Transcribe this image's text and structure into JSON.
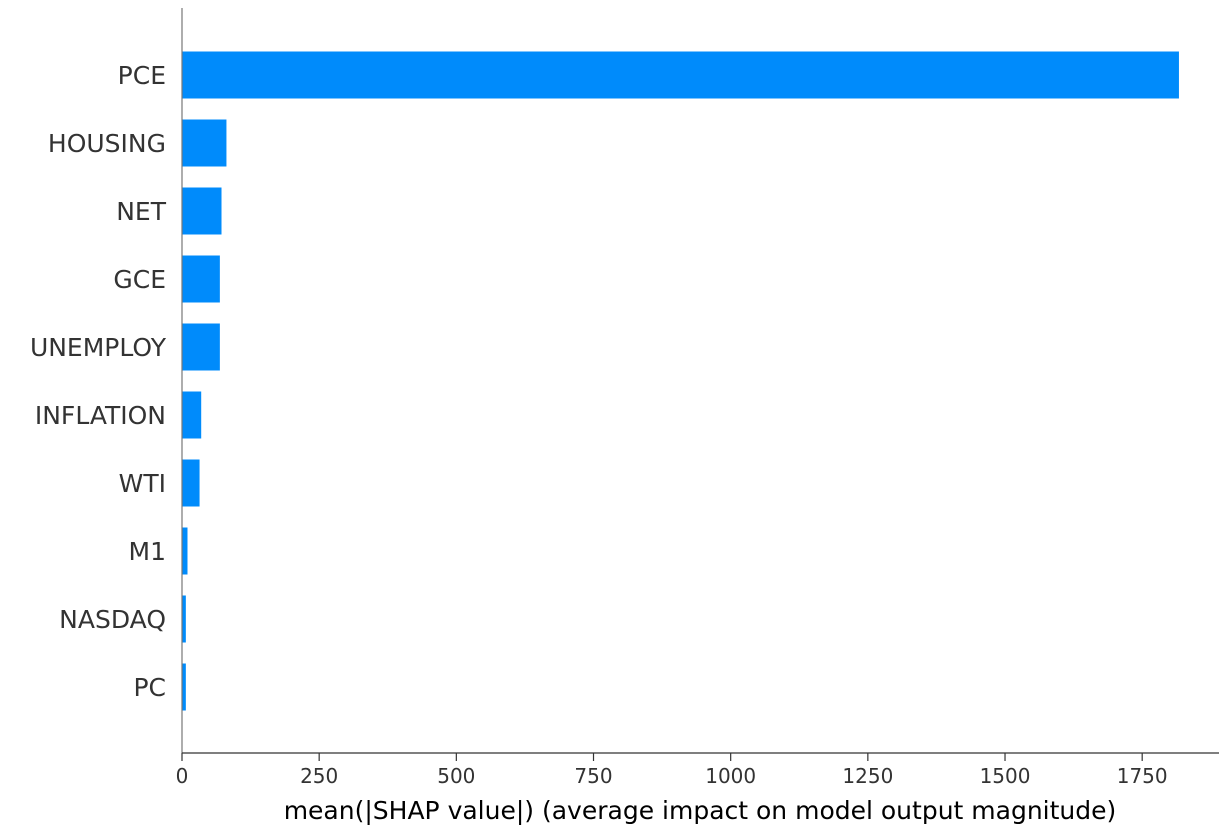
{
  "chart_data": {
    "type": "bar",
    "orientation": "horizontal",
    "categories": [
      "PCE",
      "HOUSING",
      "NET",
      "GCE",
      "UNEMPLOY",
      "INFLATION",
      "WTI",
      "M1",
      "NASDAQ",
      "PC"
    ],
    "values": [
      1817,
      81,
      72,
      69,
      69,
      35,
      32,
      10,
      7,
      7
    ],
    "xlabel": "mean(|SHAP value|) (average impact on model output magnitude)",
    "ylabel": "",
    "xlim": [
      0,
      1890
    ],
    "xticks": [
      0,
      250,
      500,
      750,
      1000,
      1250,
      1500,
      1750
    ],
    "bar_color": "#008bfb",
    "grid": false,
    "legend": "none"
  }
}
